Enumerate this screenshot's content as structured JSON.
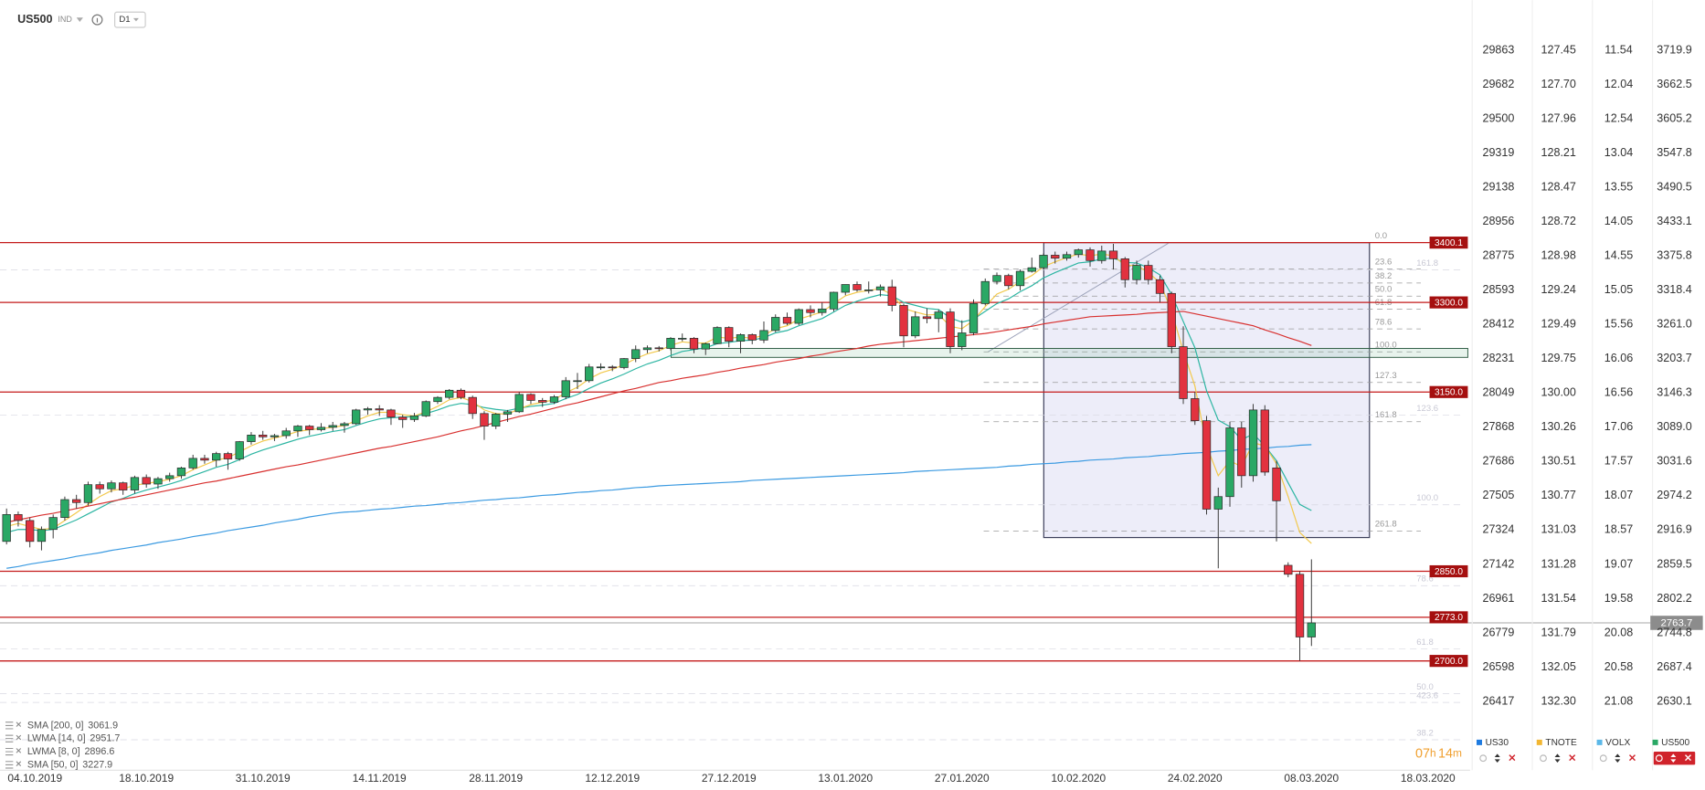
{
  "header": {
    "symbol": "US500",
    "market": "IND",
    "timeframe": "D1"
  },
  "timer": [
    "07",
    "h",
    "14",
    "m"
  ],
  "chart_data": {
    "type": "candlestick",
    "up_color": "#2aa865",
    "down_color": "#e2323f",
    "ylim": [
      2517,
      3806
    ],
    "categories": [
      null,
      null,
      "04.10.2019",
      null,
      null,
      null,
      null,
      null,
      null,
      null,
      null,
      null,
      "18.10.2019",
      null,
      null,
      null,
      null,
      null,
      null,
      null,
      null,
      null,
      "31.10.2019",
      null,
      null,
      null,
      null,
      null,
      null,
      null,
      null,
      null,
      "14.11.2019",
      null,
      null,
      null,
      null,
      null,
      null,
      null,
      null,
      null,
      "28.11.2019",
      null,
      null,
      null,
      null,
      null,
      null,
      null,
      null,
      null,
      "12.12.2019",
      null,
      null,
      null,
      null,
      null,
      null,
      null,
      null,
      null,
      "27.12.2019",
      null,
      null,
      null,
      null,
      null,
      null,
      null,
      null,
      null,
      "13.01.2020",
      null,
      null,
      null,
      null,
      null,
      null,
      null,
      null,
      null,
      "27.01.2020",
      null,
      null,
      null,
      null,
      null,
      null,
      null,
      null,
      null,
      "10.02.2020",
      null,
      null,
      null,
      null,
      null,
      null,
      null,
      null,
      null,
      "24.02.2020",
      null,
      null,
      null,
      null,
      null,
      null,
      null,
      null,
      null,
      "08.03.2020",
      null,
      null,
      null,
      null,
      null,
      null,
      null,
      null,
      null,
      "18.03.2020"
    ],
    "open": [
      2900,
      2945,
      2935,
      2900,
      2920,
      2940,
      2970,
      2965,
      2995,
      2988,
      2998,
      2986,
      3007,
      2996,
      3005,
      3010,
      3023,
      3039,
      3036,
      3047,
      3038,
      3067,
      3078,
      3075,
      3077,
      3085,
      3093,
      3087,
      3091,
      3094,
      3097,
      3120,
      3122,
      3120,
      3108,
      3104,
      3110,
      3134,
      3141,
      3153,
      3141,
      3114,
      3093,
      3113,
      3117,
      3146,
      3136,
      3133,
      3142,
      3169,
      3169,
      3192,
      3192,
      3191,
      3206,
      3221,
      3224,
      3223,
      3240,
      3240,
      3222,
      3231,
      3258,
      3235,
      3246,
      3237,
      3253,
      3275,
      3265,
      3288,
      3283,
      3289,
      3317,
      3330,
      3321,
      3321,
      3326,
      3295,
      3244,
      3276,
      3273,
      3284,
      3226,
      3249,
      3298,
      3335,
      3345,
      3328,
      3352,
      3358,
      3379,
      3374,
      3380,
      3388,
      3370,
      3386,
      3373,
      3338,
      3362,
      3338,
      3315,
      3226,
      3139,
      3102,
      2954,
      2975,
      3090,
      3010,
      3120,
      3023,
      2860,
      2845,
      2740,
      null,
      null,
      null,
      null,
      null,
      null,
      null,
      null,
      null,
      null
    ],
    "high": [
      2955,
      2950,
      2940,
      2925,
      2945,
      2975,
      2978,
      3000,
      3000,
      3002,
      3000,
      3010,
      3012,
      3008,
      3015,
      3025,
      3045,
      3045,
      3050,
      3050,
      3068,
      3083,
      3085,
      3080,
      3090,
      3095,
      3095,
      3098,
      3100,
      3100,
      3122,
      3125,
      3128,
      3122,
      3112,
      3115,
      3136,
      3143,
      3155,
      3156,
      3144,
      3118,
      3115,
      3120,
      3150,
      3148,
      3140,
      3145,
      3175,
      3182,
      3197,
      3198,
      3195,
      3207,
      3228,
      3228,
      3227,
      3242,
      3248,
      3242,
      3233,
      3260,
      3260,
      3248,
      3248,
      3268,
      3280,
      3283,
      3290,
      3295,
      3300,
      3318,
      3330,
      3335,
      3335,
      3330,
      3338,
      3298,
      3285,
      3290,
      3288,
      3290,
      3270,
      3305,
      3340,
      3350,
      3348,
      3355,
      3375,
      3382,
      3385,
      3385,
      3390,
      3392,
      3395,
      3398,
      3376,
      3370,
      3370,
      3345,
      3318,
      3260,
      3150,
      3110,
      2990,
      3100,
      3100,
      3130,
      3128,
      3035,
      2865,
      2850,
      2870,
      null,
      null,
      null,
      null,
      null,
      null,
      null,
      null,
      null,
      null
    ],
    "low": [
      2895,
      2925,
      2890,
      2885,
      2905,
      2935,
      2955,
      2960,
      2980,
      2982,
      2978,
      2980,
      2990,
      2988,
      3000,
      3005,
      3020,
      3030,
      3025,
      3020,
      3035,
      3062,
      3070,
      3068,
      3072,
      3075,
      3078,
      3084,
      3085,
      3082,
      3095,
      3112,
      3110,
      3095,
      3090,
      3100,
      3108,
      3130,
      3138,
      3138,
      3105,
      3070,
      3088,
      3100,
      3115,
      3130,
      3125,
      3130,
      3138,
      3155,
      3166,
      3187,
      3185,
      3188,
      3200,
      3215,
      3218,
      3220,
      3235,
      3215,
      3212,
      3230,
      3225,
      3215,
      3230,
      3232,
      3250,
      3262,
      3262,
      3275,
      3278,
      3285,
      3312,
      3318,
      3315,
      3310,
      3285,
      3225,
      3240,
      3265,
      3250,
      3215,
      3220,
      3245,
      3295,
      3330,
      3322,
      3320,
      3350,
      3355,
      3365,
      3370,
      3375,
      3360,
      3365,
      3355,
      3325,
      3330,
      3330,
      3300,
      3215,
      3130,
      3095,
      2945,
      2855,
      2958,
      2990,
      3000,
      3010,
      2900,
      2840,
      2700,
      2725,
      null,
      null,
      null,
      null,
      null,
      null,
      null,
      null,
      null,
      null
    ],
    "close": [
      2945,
      2935,
      2900,
      2920,
      2940,
      2970,
      2965,
      2995,
      2988,
      2998,
      2986,
      3007,
      2996,
      3005,
      3010,
      3023,
      3039,
      3036,
      3047,
      3038,
      3067,
      3078,
      3075,
      3077,
      3085,
      3093,
      3087,
      3091,
      3094,
      3097,
      3120,
      3122,
      3120,
      3108,
      3104,
      3110,
      3134,
      3141,
      3153,
      3141,
      3114,
      3093,
      3113,
      3117,
      3146,
      3136,
      3133,
      3142,
      3169,
      3169,
      3192,
      3192,
      3191,
      3206,
      3221,
      3224,
      3223,
      3240,
      3240,
      3222,
      3231,
      3258,
      3235,
      3246,
      3237,
      3253,
      3275,
      3265,
      3288,
      3283,
      3289,
      3317,
      3330,
      3321,
      3321,
      3326,
      3295,
      3244,
      3276,
      3273,
      3284,
      3226,
      3249,
      3298,
      3335,
      3345,
      3328,
      3352,
      3358,
      3379,
      3374,
      3380,
      3388,
      3370,
      3386,
      3373,
      3338,
      3362,
      3338,
      3315,
      3226,
      3139,
      3102,
      2954,
      2975,
      3090,
      3010,
      3120,
      3016,
      2968,
      2845,
      2740,
      2763.7,
      null,
      null,
      null,
      null,
      null,
      null,
      null,
      null,
      null,
      null
    ],
    "series": [
      {
        "name": "SMA [200, 0]",
        "color": "#3b9ae1",
        "values": [
          2855,
          2858,
          2862,
          2865,
          2868,
          2871,
          2875,
          2878,
          2881,
          2885,
          2888,
          2891,
          2894,
          2898,
          2901,
          2904,
          2908,
          2911,
          2914,
          2918,
          2921,
          2924,
          2927,
          2931,
          2934,
          2937,
          2941,
          2944,
          2947,
          2949,
          2950,
          2952,
          2954,
          2955,
          2957,
          2959,
          2960,
          2962,
          2964,
          2965,
          2967,
          2969,
          2970,
          2972,
          2973,
          2975,
          2977,
          2978,
          2980,
          2982,
          2983,
          2985,
          2986,
          2988,
          2990,
          2991,
          2993,
          2994,
          2995,
          2996,
          2997,
          2998,
          2999,
          3000,
          3002,
          3003,
          3004,
          3005,
          3006,
          3007,
          3008,
          3009,
          3010,
          3011,
          3012,
          3013,
          3014,
          3015,
          3017,
          3018,
          3019,
          3020,
          3021,
          3022,
          3023,
          3024,
          3026,
          3027,
          3029,
          3030,
          3031,
          3033,
          3034,
          3036,
          3037,
          3038,
          3040,
          3041,
          3042,
          3044,
          3045,
          3047,
          3048,
          3049,
          3051,
          3052,
          3054,
          3055,
          3056,
          3058,
          3059,
          3061,
          3061.9,
          null,
          null,
          null,
          null,
          null,
          null,
          null,
          null,
          null,
          null
        ]
      },
      {
        "name": "LWMA [14, 0]",
        "color": "#2cb5a2",
        "values": [
          2915,
          2920,
          2920,
          2918,
          2920,
          2928,
          2936,
          2946,
          2956,
          2966,
          2972,
          2980,
          2986,
          2991,
          2996,
          3002,
          3010,
          3017,
          3024,
          3029,
          3037,
          3046,
          3053,
          3059,
          3065,
          3071,
          3076,
          3080,
          3084,
          3087,
          3094,
          3100,
          3105,
          3107,
          3108,
          3109,
          3114,
          3120,
          3127,
          3131,
          3129,
          3124,
          3121,
          3119,
          3123,
          3126,
          3128,
          3131,
          3139,
          3146,
          3156,
          3165,
          3172,
          3180,
          3189,
          3197,
          3203,
          3211,
          3218,
          3221,
          3224,
          3231,
          3233,
          3236,
          3237,
          3241,
          3249,
          3253,
          3261,
          3267,
          3273,
          3284,
          3295,
          3302,
          3308,
          3313,
          3311,
          3300,
          3295,
          3290,
          3288,
          3274,
          3267,
          3272,
          3285,
          3298,
          3306,
          3318,
          3328,
          3341,
          3350,
          3358,
          3366,
          3368,
          3373,
          3374,
          3367,
          3366,
          3358,
          3346,
          3313,
          3268,
          3224,
          3152,
          3103,
          3092,
          3070,
          3080,
          3060,
          3035,
          2998,
          2962,
          2951.7,
          null,
          null,
          null,
          null,
          null,
          null,
          null,
          null,
          null,
          null
        ]
      },
      {
        "name": "LWMA [8, 0]",
        "color": "#f2c94c",
        "values": [
          2925,
          2930,
          2925,
          2920,
          2922,
          2935,
          2948,
          2962,
          2975,
          2985,
          2988,
          2994,
          2997,
          3000,
          3004,
          3010,
          3020,
          3028,
          3036,
          3040,
          3050,
          3060,
          3068,
          3073,
          3078,
          3084,
          3087,
          3089,
          3091,
          3094,
          3102,
          3110,
          3116,
          3116,
          3112,
          3110,
          3117,
          3126,
          3137,
          3141,
          3134,
          3120,
          3114,
          3113,
          3122,
          3129,
          3133,
          3137,
          3149,
          3158,
          3172,
          3182,
          3188,
          3196,
          3206,
          3214,
          3219,
          3228,
          3234,
          3232,
          3232,
          3242,
          3240,
          3242,
          3240,
          3245,
          3256,
          3261,
          3272,
          3278,
          3284,
          3298,
          3311,
          3317,
          3320,
          3323,
          3313,
          3290,
          3284,
          3279,
          3280,
          3260,
          3256,
          3270,
          3293,
          3314,
          3322,
          3335,
          3345,
          3360,
          3368,
          3375,
          3381,
          3378,
          3381,
          3378,
          3362,
          3362,
          3350,
          3333,
          3285,
          3218,
          3160,
          3060,
          3010,
          3035,
          3025,
          3065,
          3060,
          3030,
          2975,
          2915,
          2896.6,
          null,
          null,
          null,
          null,
          null,
          null,
          null,
          null,
          null,
          null
        ]
      },
      {
        "name": "SMA [50, 0]",
        "color": "#d8302f",
        "values": [
          2932,
          2936,
          2940,
          2944,
          2947,
          2951,
          2955,
          2959,
          2963,
          2967,
          2971,
          2974,
          2978,
          2982,
          2986,
          2990,
          2994,
          2998,
          3001,
          3005,
          3009,
          3013,
          3017,
          3021,
          3025,
          3028,
          3032,
          3036,
          3040,
          3044,
          3048,
          3052,
          3056,
          3059,
          3063,
          3067,
          3071,
          3075,
          3080,
          3085,
          3089,
          3094,
          3099,
          3104,
          3109,
          3113,
          3118,
          3123,
          3128,
          3132,
          3137,
          3142,
          3147,
          3152,
          3156,
          3161,
          3166,
          3169,
          3173,
          3176,
          3179,
          3183,
          3186,
          3190,
          3193,
          3196,
          3200,
          3203,
          3206,
          3210,
          3213,
          3217,
          3220,
          3223,
          3227,
          3230,
          3232,
          3234,
          3236,
          3238,
          3240,
          3242,
          3244,
          3246,
          3248,
          3251,
          3254,
          3257,
          3260,
          3264,
          3267,
          3270,
          3273,
          3276,
          3277,
          3278,
          3279,
          3280,
          3282,
          3283,
          3284,
          3285,
          3281,
          3277,
          3273,
          3269,
          3265,
          3261,
          3254,
          3248,
          3241,
          3235,
          3227.9,
          null,
          null,
          null,
          null,
          null,
          null,
          null,
          null,
          null,
          null
        ]
      }
    ],
    "levels": [
      3400.1,
      {
        "value": 3300,
        "label": "3300.0"
      },
      {
        "value": 3150,
        "label": "3150.0"
      },
      {
        "value": 2850,
        "label": "2850.0"
      },
      {
        "value": 2773,
        "label": "2773.0"
      },
      {
        "value": 2700,
        "label": "2700.0"
      }
    ],
    "zone": {
      "from": 3208,
      "to": 3223
    },
    "fib_box": {
      "top": 3400.1,
      "bottom": 2906.5
    },
    "fib_levels": [
      {
        "label": "0.0",
        "price": 3400.1
      },
      {
        "label": "23.6",
        "price": 3356.2
      },
      {
        "label": "38.2",
        "price": 3332.5
      },
      {
        "label": "50.0",
        "price": 3310.5
      },
      {
        "label": "61.8",
        "price": 3288.6
      },
      {
        "label": "78.6",
        "price": 3255.7
      },
      {
        "label": "100.0",
        "price": 3217.3
      },
      {
        "label": "127.3",
        "price": 3166.1
      },
      {
        "label": "161.8",
        "price": 3100.3
      },
      {
        "label": "261.8",
        "price": 2917.5
      }
    ],
    "fib_extension_levels": [
      {
        "label": "161.8",
        "price": 3354.4
      },
      {
        "label": "123.6",
        "price": 3111.3
      },
      {
        "label": "100.0",
        "price": 2961.3
      },
      {
        "label": "78.6",
        "price": 2826
      },
      {
        "label": "61.8",
        "price": 2720
      },
      {
        "label": "50.0",
        "price": 2645
      },
      {
        "label": "423.6",
        "price": 2630.5
      },
      {
        "label": "38.2",
        "price": 2568
      }
    ]
  },
  "comparison": {
    "columns": [
      {
        "name": "US30",
        "color": "#1e7be0",
        "values": [
          "29863",
          "29682",
          "29500",
          "29319",
          "29138",
          "28956",
          "28775",
          "28593",
          "28412",
          "28231",
          "28049",
          "27868",
          "27686",
          "27505",
          "27324",
          "27142",
          "26961",
          "26779",
          "26598",
          "26417"
        ]
      },
      {
        "name": "TNOTE",
        "color": "#f2b632",
        "values": [
          "127.45",
          "127.70",
          "127.96",
          "128.21",
          "128.47",
          "128.72",
          "128.98",
          "129.24",
          "129.49",
          "129.75",
          "130.00",
          "130.26",
          "130.51",
          "130.77",
          "131.03",
          "131.28",
          "131.54",
          "131.79",
          "132.05",
          "132.30"
        ]
      },
      {
        "name": "VOLX",
        "color": "#5bb8e8",
        "values": [
          "11.54",
          "12.04",
          "12.54",
          "13.04",
          "13.55",
          "14.05",
          "14.55",
          "15.05",
          "15.56",
          "16.06",
          "16.56",
          "17.06",
          "17.57",
          "18.07",
          "18.57",
          "19.07",
          "19.58",
          "20.08",
          "20.58",
          "21.08"
        ]
      },
      {
        "name": "US500",
        "color": "#2aa865",
        "values": [
          "3719.9",
          "3662.5",
          "3605.2",
          "3547.8",
          "3490.5",
          "3433.1",
          "3375.8",
          "3318.4",
          "3261.0",
          "3203.7",
          "3146.3",
          "3089.0",
          "3031.6",
          "2974.2",
          "2916.9",
          "2859.5",
          "2802.2",
          "2744.8",
          "2687.4",
          "2630.1"
        ]
      }
    ]
  }
}
